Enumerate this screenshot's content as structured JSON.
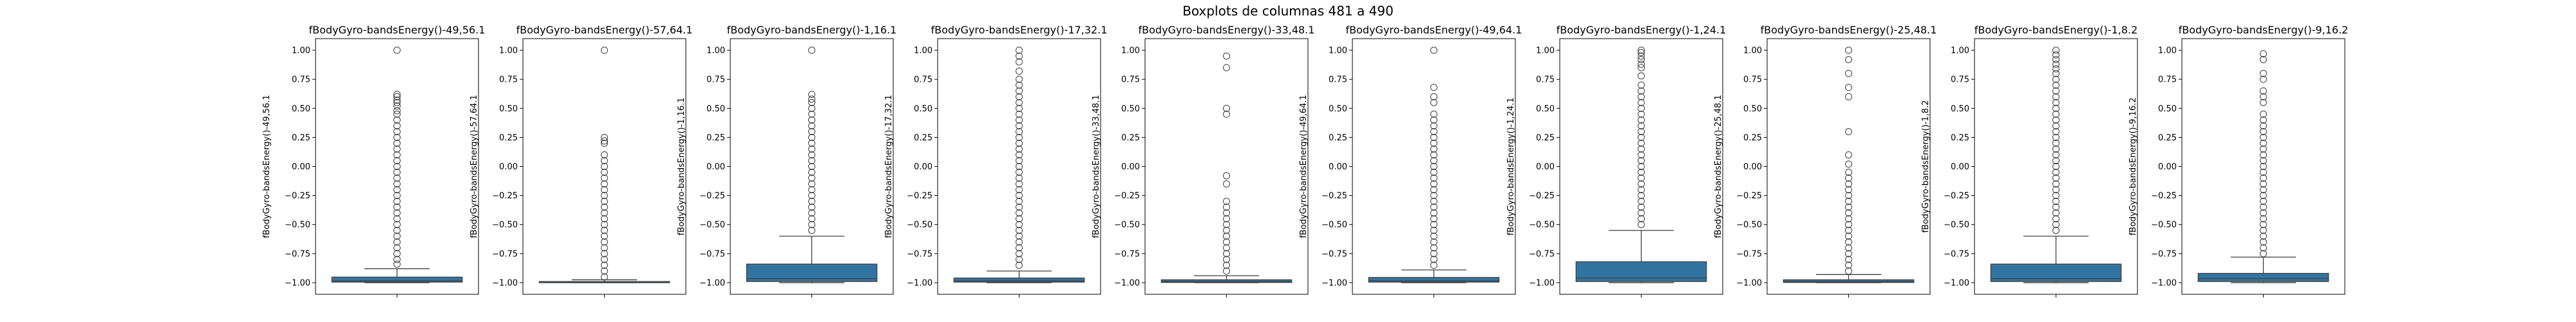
{
  "chart_data": {
    "type": "boxplot",
    "title": "Boxplots de columnas 481 a 490",
    "ylim": [
      -1.1,
      1.1
    ],
    "yticks": [
      -1.0,
      -0.75,
      -0.5,
      -0.25,
      0.0,
      0.25,
      0.5,
      0.75,
      1.0
    ],
    "ytick_labels": [
      "−1.00",
      "−0.75",
      "−0.50",
      "−0.25",
      "0.00",
      "0.25",
      "0.50",
      "0.75",
      "1.00"
    ],
    "box_color": "#3274a1",
    "panels": [
      {
        "title": "fBodyGyro-bandsEnergy()-49,56.1",
        "ylabel": "fBodyGyro-bandsEnergy()-49,56.1",
        "q1": -0.995,
        "median": -0.985,
        "q3": -0.952,
        "whisker_low": -1.0,
        "whisker_high": -0.88,
        "outliers": [
          1.0,
          0.62,
          0.6,
          0.57,
          0.55,
          0.52,
          0.48,
          0.45,
          0.4,
          0.35,
          0.3,
          0.25,
          0.2,
          0.15,
          0.1,
          0.05,
          0.0,
          -0.05,
          -0.1,
          -0.15,
          -0.2,
          -0.25,
          -0.3,
          -0.35,
          -0.4,
          -0.45,
          -0.5,
          -0.55,
          -0.6,
          -0.65,
          -0.7,
          -0.75,
          -0.8,
          -0.84
        ]
      },
      {
        "title": "fBodyGyro-bandsEnergy()-57,64.1",
        "ylabel": "fBodyGyro-bandsEnergy()-57,64.1",
        "q1": -1.0,
        "median": -0.998,
        "q3": -0.99,
        "whisker_low": -1.0,
        "whisker_high": -0.975,
        "outliers": [
          1.0,
          0.25,
          0.22,
          0.2,
          0.1,
          0.05,
          0.0,
          -0.05,
          -0.1,
          -0.15,
          -0.2,
          -0.25,
          -0.3,
          -0.35,
          -0.4,
          -0.45,
          -0.5,
          -0.55,
          -0.6,
          -0.65,
          -0.7,
          -0.75,
          -0.8,
          -0.85,
          -0.9,
          -0.95
        ]
      },
      {
        "title": "fBodyGyro-bandsEnergy()-1,16.1",
        "ylabel": "fBodyGyro-bandsEnergy()-1,16.1",
        "q1": -0.99,
        "median": -0.965,
        "q3": -0.84,
        "whisker_low": -1.0,
        "whisker_high": -0.6,
        "outliers": [
          1.0,
          0.62,
          0.58,
          0.55,
          0.5,
          0.45,
          0.4,
          0.35,
          0.3,
          0.25,
          0.2,
          0.15,
          0.1,
          0.05,
          0.0,
          -0.05,
          -0.1,
          -0.15,
          -0.2,
          -0.25,
          -0.3,
          -0.35,
          -0.4,
          -0.45,
          -0.5,
          -0.55
        ]
      },
      {
        "title": "fBodyGyro-bandsEnergy()-17,32.1",
        "ylabel": "fBodyGyro-bandsEnergy()-17,32.1",
        "q1": -0.995,
        "median": -0.985,
        "q3": -0.96,
        "whisker_low": -1.0,
        "whisker_high": -0.9,
        "outliers": [
          1.0,
          0.95,
          0.9,
          0.82,
          0.75,
          0.7,
          0.65,
          0.6,
          0.55,
          0.5,
          0.45,
          0.4,
          0.35,
          0.3,
          0.25,
          0.2,
          0.15,
          0.1,
          0.05,
          0.0,
          -0.05,
          -0.1,
          -0.15,
          -0.2,
          -0.25,
          -0.3,
          -0.35,
          -0.4,
          -0.45,
          -0.5,
          -0.55,
          -0.6,
          -0.65,
          -0.7,
          -0.75,
          -0.8,
          -0.85
        ]
      },
      {
        "title": "fBodyGyro-bandsEnergy()-33,48.1",
        "ylabel": "fBodyGyro-bandsEnergy()-33,48.1",
        "q1": -0.998,
        "median": -0.99,
        "q3": -0.975,
        "whisker_low": -1.0,
        "whisker_high": -0.94,
        "outliers": [
          0.95,
          0.85,
          0.5,
          0.45,
          -0.08,
          -0.15,
          -0.3,
          -0.35,
          -0.4,
          -0.45,
          -0.5,
          -0.55,
          -0.6,
          -0.65,
          -0.7,
          -0.75,
          -0.8,
          -0.85,
          -0.9
        ]
      },
      {
        "title": "fBodyGyro-bandsEnergy()-49,64.1",
        "ylabel": "fBodyGyro-bandsEnergy()-49,64.1",
        "q1": -0.995,
        "median": -0.985,
        "q3": -0.955,
        "whisker_low": -1.0,
        "whisker_high": -0.89,
        "outliers": [
          1.0,
          0.68,
          0.6,
          0.55,
          0.45,
          0.4,
          0.35,
          0.3,
          0.25,
          0.2,
          0.15,
          0.1,
          0.05,
          0.0,
          -0.05,
          -0.1,
          -0.15,
          -0.2,
          -0.25,
          -0.3,
          -0.35,
          -0.4,
          -0.45,
          -0.5,
          -0.55,
          -0.6,
          -0.65,
          -0.7,
          -0.75,
          -0.8,
          -0.85
        ]
      },
      {
        "title": "fBodyGyro-bandsEnergy()-1,24.1",
        "ylabel": "fBodyGyro-bandsEnergy()-1,24.1",
        "q1": -0.99,
        "median": -0.96,
        "q3": -0.82,
        "whisker_low": -1.0,
        "whisker_high": -0.55,
        "outliers": [
          1.0,
          0.98,
          0.95,
          0.92,
          0.88,
          0.85,
          0.78,
          0.7,
          0.65,
          0.6,
          0.55,
          0.5,
          0.45,
          0.4,
          0.35,
          0.3,
          0.25,
          0.2,
          0.15,
          0.1,
          0.05,
          0.0,
          -0.05,
          -0.1,
          -0.15,
          -0.2,
          -0.25,
          -0.3,
          -0.35,
          -0.4,
          -0.45,
          -0.5
        ]
      },
      {
        "title": "fBodyGyro-bandsEnergy()-25,48.1",
        "ylabel": "fBodyGyro-bandsEnergy()-25,48.1",
        "q1": -0.998,
        "median": -0.99,
        "q3": -0.975,
        "whisker_low": -1.0,
        "whisker_high": -0.93,
        "outliers": [
          1.0,
          0.92,
          0.8,
          0.68,
          0.6,
          0.3,
          0.1,
          0.02,
          -0.05,
          -0.1,
          -0.15,
          -0.2,
          -0.25,
          -0.3,
          -0.35,
          -0.4,
          -0.45,
          -0.5,
          -0.55,
          -0.6,
          -0.65,
          -0.7,
          -0.75,
          -0.8,
          -0.85,
          -0.9
        ]
      },
      {
        "title": "fBodyGyro-bandsEnergy()-1,8.2",
        "ylabel": "fBodyGyro-bandsEnergy()-1,8.2",
        "q1": -0.99,
        "median": -0.965,
        "q3": -0.84,
        "whisker_low": -1.0,
        "whisker_high": -0.6,
        "outliers": [
          1.0,
          0.96,
          0.92,
          0.88,
          0.84,
          0.8,
          0.75,
          0.7,
          0.65,
          0.6,
          0.55,
          0.5,
          0.45,
          0.4,
          0.35,
          0.3,
          0.25,
          0.2,
          0.15,
          0.1,
          0.05,
          0.0,
          -0.05,
          -0.1,
          -0.15,
          -0.2,
          -0.25,
          -0.3,
          -0.35,
          -0.4,
          -0.45,
          -0.5,
          -0.55
        ]
      },
      {
        "title": "fBodyGyro-bandsEnergy()-9,16.2",
        "ylabel": "fBodyGyro-bandsEnergy()-9,16.2",
        "q1": -0.99,
        "median": -0.965,
        "q3": -0.92,
        "whisker_low": -1.0,
        "whisker_high": -0.78,
        "outliers": [
          0.97,
          0.92,
          0.8,
          0.75,
          0.65,
          0.6,
          0.55,
          0.45,
          0.4,
          0.35,
          0.3,
          0.25,
          0.2,
          0.15,
          0.1,
          0.05,
          0.0,
          -0.05,
          -0.1,
          -0.15,
          -0.2,
          -0.25,
          -0.3,
          -0.35,
          -0.4,
          -0.45,
          -0.5,
          -0.55,
          -0.6,
          -0.65,
          -0.7,
          -0.75
        ]
      }
    ]
  }
}
